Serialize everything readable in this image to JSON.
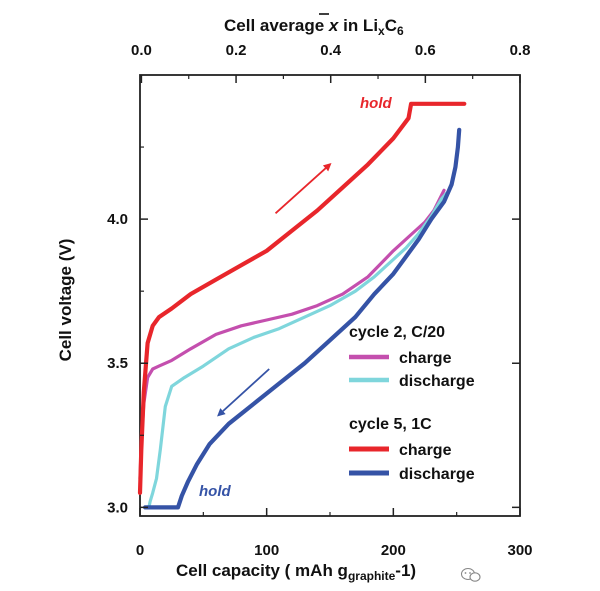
{
  "chart_data": {
    "type": "line",
    "title": "",
    "xlabel": "Cell capacity ( mAh g",
    "xlabel_sub": "graphite",
    "xlabel_end": "-1)",
    "ylabel": "Cell voltage (V)",
    "top_axis_label": {
      "prefix": "Cell average ",
      "symbol": "x",
      "middle": " in Li",
      "sub1": "x",
      "after_sub1": "C",
      "sub2": "6"
    },
    "xlim": [
      0,
      300
    ],
    "ylim": [
      2.97,
      4.5
    ],
    "top_xlim": [
      -0.003,
      0.8
    ],
    "x_ticks": [
      "0",
      "100",
      "200",
      "300"
    ],
    "y_ticks": [
      "3.0",
      "3.5",
      "4.0"
    ],
    "top_ticks": [
      "0.0",
      "0.2",
      "0.4",
      "0.6",
      "0.8"
    ],
    "grid": false,
    "legend": {
      "placement": "lower-right",
      "groups": [
        {
          "title": "cycle 2, C/20",
          "entries": [
            {
              "label": "charge",
              "color": "#c44fae"
            },
            {
              "label": "discharge",
              "color": "#7fd6dc"
            }
          ]
        },
        {
          "title": "cycle 5, 1C",
          "entries": [
            {
              "label": "charge",
              "color": "#e8262b"
            },
            {
              "label": "discharge",
              "color": "#3553a6"
            }
          ]
        }
      ]
    },
    "annotations": [
      {
        "text": "hold",
        "color": "#e8262b"
      },
      {
        "text": "hold",
        "color": "#3553a6"
      }
    ],
    "arrows": [
      {
        "series": "cycle 5 charge",
        "direction": "up-right",
        "from": [
          107,
          4.02
        ],
        "to": [
          150,
          4.19
        ]
      },
      {
        "series": "cycle 5 discharge",
        "direction": "down-left",
        "from": [
          102,
          3.48
        ],
        "to": [
          62,
          3.32
        ]
      }
    ],
    "series": [
      {
        "id": "c2-charge",
        "color": "#c44fae",
        "x": [
          0,
          1,
          3,
          6,
          10,
          15,
          25,
          40,
          60,
          80,
          100,
          120,
          140,
          160,
          180,
          200,
          215,
          225,
          232,
          240
        ],
        "y": [
          3.1,
          3.22,
          3.36,
          3.45,
          3.48,
          3.49,
          3.51,
          3.55,
          3.6,
          3.63,
          3.65,
          3.67,
          3.7,
          3.74,
          3.8,
          3.89,
          3.95,
          3.99,
          4.03,
          4.1
        ]
      },
      {
        "id": "c2-discharge",
        "color": "#7fd6dc",
        "x": [
          242,
          238,
          230,
          220,
          210,
          200,
          185,
          170,
          150,
          130,
          110,
          90,
          70,
          50,
          35,
          25,
          20,
          16,
          13,
          10,
          8,
          7
        ],
        "y": [
          4.09,
          4.07,
          4.01,
          3.95,
          3.9,
          3.86,
          3.8,
          3.75,
          3.7,
          3.66,
          3.62,
          3.59,
          3.55,
          3.49,
          3.45,
          3.42,
          3.35,
          3.2,
          3.1,
          3.05,
          3.02,
          3.0
        ]
      },
      {
        "id": "c5-charge",
        "color": "#e8262b",
        "x": [
          0,
          1,
          3,
          6,
          10,
          15,
          25,
          40,
          60,
          80,
          100,
          120,
          140,
          160,
          180,
          200,
          212,
          214,
          222,
          240,
          256
        ],
        "y": [
          3.05,
          3.2,
          3.4,
          3.57,
          3.63,
          3.66,
          3.69,
          3.74,
          3.79,
          3.84,
          3.89,
          3.96,
          4.03,
          4.11,
          4.19,
          4.28,
          4.35,
          4.4,
          4.4,
          4.4,
          4.4
        ]
      },
      {
        "id": "c5-discharge",
        "color": "#3553a6",
        "x": [
          252,
          251,
          249,
          246,
          240,
          230,
          220,
          210,
          200,
          185,
          170,
          150,
          130,
          110,
          90,
          70,
          55,
          45,
          38,
          33,
          30,
          15,
          4
        ],
        "y": [
          4.31,
          4.25,
          4.18,
          4.12,
          4.06,
          4.0,
          3.93,
          3.87,
          3.81,
          3.74,
          3.66,
          3.58,
          3.5,
          3.43,
          3.36,
          3.29,
          3.22,
          3.15,
          3.09,
          3.04,
          3.0,
          3.0,
          3.0
        ]
      }
    ]
  },
  "watermark": {
    "icon": "wechat-icon"
  }
}
